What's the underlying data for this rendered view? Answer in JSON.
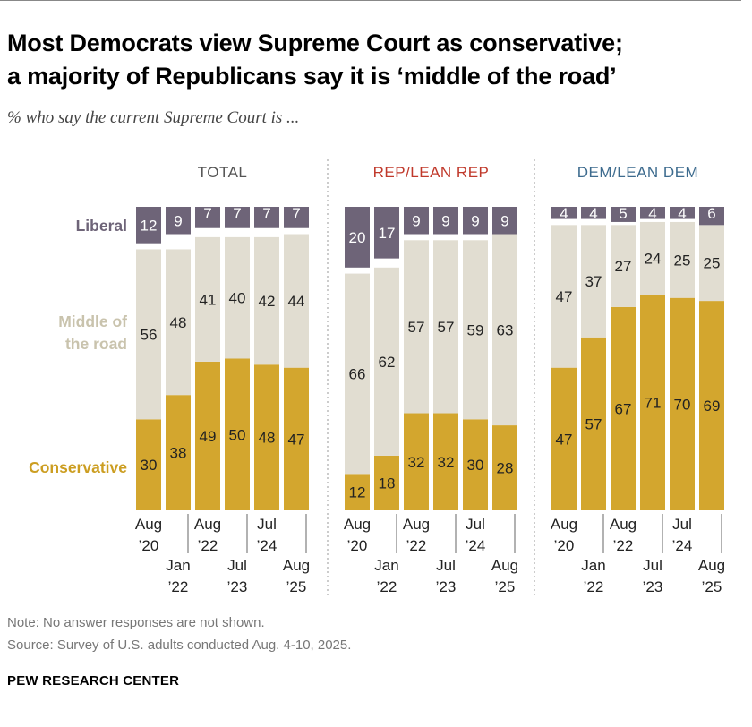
{
  "title_line1": "Most Democrats view Supreme Court as conservative;",
  "title_line2": "a majority of Republicans say it is ‘middle of the road’",
  "subtitle": "% who say the current Supreme Court is ...",
  "note": "Note: No answer responses are not shown.",
  "source": "Source: Survey of U.S. adults conducted Aug. 4-10, 2025.",
  "brand": "PEW RESEARCH CENTER",
  "colors": {
    "liberal": "#6e6478",
    "middle": "#e1ddd1",
    "conservative": "#d3a62e",
    "liberal_label": "#6e6478",
    "middle_label": "#c9c3ad",
    "conservative_label": "#cc9e22",
    "rep": "#c0392b",
    "dem": "#3d6b8e",
    "total": "#555555"
  },
  "chart_data": {
    "type": "bar",
    "stacked": true,
    "legend": [
      "Liberal",
      "Middle of the road",
      "Conservative"
    ],
    "legend_label_lines": [
      [
        "Liberal"
      ],
      [
        "Middle of",
        "the road"
      ],
      [
        "Conservative"
      ]
    ],
    "categories": [
      [
        "Aug",
        "’20"
      ],
      [
        "Jan",
        "’22"
      ],
      [
        "Aug",
        "’22"
      ],
      [
        "Jul",
        "’23"
      ],
      [
        "Jul",
        "’24"
      ],
      [
        "Aug",
        "’25"
      ]
    ],
    "ylim": [
      0,
      100
    ],
    "panels": [
      {
        "title": "TOTAL",
        "series": [
          {
            "name": "Conservative",
            "values": [
              30,
              38,
              49,
              50,
              48,
              47
            ]
          },
          {
            "name": "Middle of the road",
            "values": [
              56,
              48,
              41,
              40,
              42,
              44
            ]
          },
          {
            "name": "Liberal",
            "values": [
              12,
              9,
              7,
              7,
              7,
              7
            ]
          }
        ]
      },
      {
        "title": "REP/LEAN REP",
        "series": [
          {
            "name": "Conservative",
            "values": [
              12,
              18,
              32,
              32,
              30,
              28
            ]
          },
          {
            "name": "Middle of the road",
            "values": [
              66,
              62,
              57,
              57,
              59,
              63
            ]
          },
          {
            "name": "Liberal",
            "values": [
              20,
              17,
              9,
              9,
              9,
              9
            ]
          }
        ]
      },
      {
        "title": "DEM/LEAN DEM",
        "series": [
          {
            "name": "Conservative",
            "values": [
              47,
              57,
              67,
              71,
              70,
              69
            ]
          },
          {
            "name": "Middle of the road",
            "values": [
              47,
              37,
              27,
              24,
              25,
              25
            ]
          },
          {
            "name": "Liberal",
            "values": [
              4,
              4,
              5,
              4,
              4,
              6
            ]
          }
        ]
      }
    ]
  }
}
